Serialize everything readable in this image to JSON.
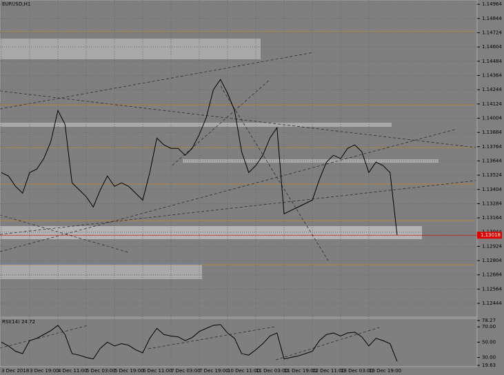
{
  "chart_data": [
    {
      "type": "line",
      "title": "EURUSD,H1",
      "categories": [
        "3 Dec 2018",
        null,
        null,
        null,
        "3 Dec 19:00",
        null,
        null,
        null,
        "4 Dec 11:00",
        null,
        null,
        null,
        "5 Dec 03:00",
        null,
        null,
        null,
        "5 Dec 19:00",
        null,
        null,
        null,
        "6 Dec 11:00",
        null,
        null,
        null,
        "7 Dec 03:00",
        null,
        null,
        null,
        "7 Dec 19:00",
        null,
        null,
        null,
        "10 Dec 11:00",
        null,
        null,
        null,
        "11 Dec 03:00",
        null,
        null,
        null,
        "11 Dec 19:00",
        null,
        null,
        null,
        "12 Dec 11:00",
        null,
        null,
        null,
        "13 Dec 03:00",
        null,
        null,
        null,
        "13 Dec 19:00",
        null,
        null,
        null,
        null
      ],
      "series": [
        {
          "color": "#000000",
          "values": [
            1.13546,
            1.13517,
            1.1343,
            1.13372,
            1.13546,
            1.13575,
            1.13663,
            1.13808,
            1.14069,
            1.13953,
            1.13459,
            1.13401,
            1.13343,
            1.13256,
            1.13401,
            1.13517,
            1.1343,
            1.13459,
            1.1343,
            1.13372,
            1.13314,
            1.13546,
            1.13837,
            1.13779,
            1.1375,
            1.1375,
            1.13692,
            1.1375,
            1.13866,
            1.14011,
            1.14244,
            1.14331,
            1.14215,
            1.14069,
            1.13721,
            1.13546,
            1.13605,
            1.13692,
            1.13837,
            1.13924,
            1.13198,
            1.13227,
            1.13256,
            1.13285,
            1.13314,
            1.13488,
            1.13634,
            1.13692,
            1.13663,
            1.1375,
            1.13779,
            1.13721,
            1.13546,
            1.13634,
            1.13605,
            1.13546,
            1.13018
          ]
        }
      ],
      "ylim": [
        1.12328,
        1.15
      ],
      "yticks": [
        1.14964,
        1.14844,
        1.14724,
        1.14604,
        1.14484,
        1.14364,
        1.14244,
        1.14124,
        1.14004,
        1.13884,
        1.13764,
        1.13644,
        1.13524,
        1.13404,
        1.13284,
        1.13164,
        1.13044,
        1.12924,
        1.12804,
        1.12684,
        1.12564,
        1.12444
      ],
      "grid": true,
      "current_price": 1.13018
    },
    {
      "type": "line",
      "title": "RSI(14) 24.72",
      "series": [
        {
          "color": "#000000",
          "values": [
            50,
            45,
            38,
            35,
            52,
            55,
            60,
            65,
            72,
            60,
            35,
            33,
            30,
            28,
            42,
            50,
            45,
            48,
            46,
            40,
            36,
            55,
            68,
            60,
            58,
            57,
            52,
            56,
            64,
            68,
            72,
            73,
            62,
            55,
            35,
            33,
            40,
            48,
            58,
            62,
            28,
            30,
            32,
            35,
            38,
            52,
            60,
            62,
            58,
            62,
            63,
            57,
            45,
            55,
            52,
            48,
            24.72
          ]
        }
      ],
      "ylim": [
        19.63,
        78.27
      ],
      "yticks": [
        19.63,
        {
          "value": 30,
          "label": "30.00"
        },
        {
          "value": 50,
          "label": "50.00"
        },
        {
          "value": 70,
          "label": "70.00"
        },
        78.27
      ]
    }
  ]
}
